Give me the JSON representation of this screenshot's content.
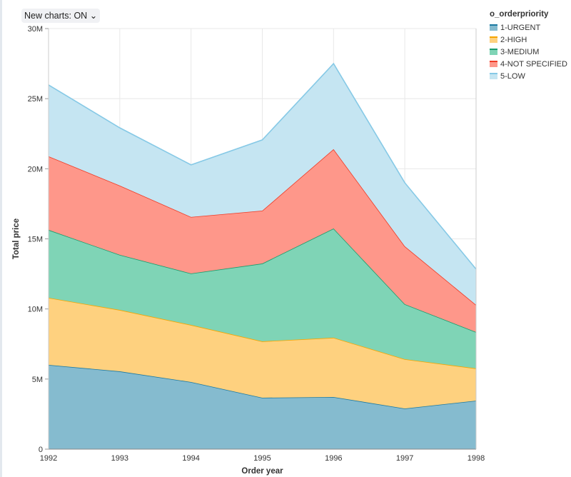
{
  "toolbar": {
    "new_charts_label": "New charts: ON"
  },
  "chart_data": {
    "type": "area",
    "stacked": true,
    "xlabel": "Order year",
    "ylabel": "Total price",
    "x": [
      1992,
      1993,
      1994,
      1995,
      1996,
      1997,
      1998
    ],
    "ylim": [
      0,
      30000000
    ],
    "yticks": [
      {
        "v": 0,
        "label": "0"
      },
      {
        "v": 5000000,
        "label": "5M"
      },
      {
        "v": 10000000,
        "label": "10M"
      },
      {
        "v": 15000000,
        "label": "15M"
      },
      {
        "v": 20000000,
        "label": "20M"
      },
      {
        "v": 25000000,
        "label": "25M"
      },
      {
        "v": 30000000,
        "label": "30M"
      }
    ],
    "grid": true,
    "legend": {
      "title": "o_orderpriority",
      "placement": "right"
    },
    "series": [
      {
        "name": "1-URGENT",
        "line": "#1b79a1",
        "fill": "#85bbcf",
        "values": [
          6010000,
          5550000,
          4790000,
          3670000,
          3720000,
          2900000,
          3460000
        ]
      },
      {
        "name": "2-HIGH",
        "line": "#f5a500",
        "fill": "#fed17f",
        "values": [
          4790000,
          4380000,
          4070000,
          4020000,
          4230000,
          3520000,
          2300000
        ]
      },
      {
        "name": "3-MEDIUM",
        "line": "#199c6c",
        "fill": "#7fd4b6",
        "values": [
          4840000,
          3930000,
          3670000,
          5550000,
          7790000,
          3920000,
          2590000
        ]
      },
      {
        "name": "4-NOT SPECIFIED",
        "line": "#ef3b26",
        "fill": "#fe978a",
        "values": [
          5250000,
          4940000,
          4030000,
          3770000,
          5660000,
          4130000,
          1940000
        ]
      },
      {
        "name": "5-LOW",
        "line": "#86c9e6",
        "fill": "#c5e5f2",
        "values": [
          5090000,
          4120000,
          3720000,
          5050000,
          6100000,
          4530000,
          2550000
        ]
      }
    ]
  }
}
